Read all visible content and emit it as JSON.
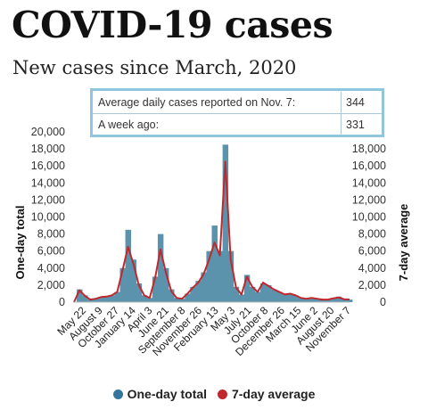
{
  "title": "COVID-19 cases",
  "subtitle": "New cases since March, 2020",
  "stats": {
    "row1_label": "Average daily cases reported on Nov. 7:",
    "row1_value": "344",
    "row2_label": "A week ago:",
    "row2_value": "331"
  },
  "colors": {
    "bars": "#5b93ad",
    "line": "#c0282d",
    "box_border": "#90c6dd"
  },
  "chart_data": {
    "type": "bar",
    "title": "",
    "ylabel": "One-day total",
    "y2label": "7-day average",
    "ylim": [
      0,
      20000
    ],
    "y_ticks_left": [
      "20,000",
      "18,000",
      "16,000",
      "14,000",
      "12,000",
      "10,000",
      "8,000",
      "6,000",
      "4,000",
      "2,000",
      "0"
    ],
    "y_ticks_right": [
      "18,000",
      "16,000",
      "14,000",
      "12,000",
      "10,000",
      "8,000",
      "6,000",
      "4,000",
      "2,000",
      "0"
    ],
    "x_ticks": [
      "May 22",
      "August 9",
      "October 27",
      "January 14",
      "April 3",
      "June 21",
      "September 8",
      "November 26",
      "February 13",
      "May 3",
      "July 21",
      "October 8",
      "December 26",
      "March 15",
      "June 2",
      "August 20",
      "November 7"
    ],
    "grid": false,
    "legend": "bottom",
    "series": [
      {
        "name": "One-day total",
        "kind": "bar",
        "values": [
          0,
          1500,
          800,
          300,
          400,
          600,
          650,
          800,
          1200,
          4000,
          8500,
          5000,
          2200,
          800,
          500,
          3000,
          8000,
          4000,
          1500,
          500,
          400,
          1000,
          1800,
          2500,
          3500,
          6000,
          9000,
          6000,
          18500,
          6000,
          1800,
          900,
          3200,
          1800,
          1200,
          2200,
          2000,
          1500,
          1200,
          900,
          1000,
          800,
          500,
          400,
          500,
          400,
          300,
          300,
          450,
          650,
          350,
          300
        ]
      },
      {
        "name": "7-day average",
        "kind": "line",
        "values": [
          0,
          1400,
          750,
          300,
          400,
          600,
          650,
          800,
          1200,
          3800,
          6500,
          4500,
          2000,
          800,
          500,
          2800,
          6200,
          3500,
          1300,
          500,
          400,
          1000,
          1700,
          2300,
          3300,
          5000,
          7000,
          5500,
          16500,
          5000,
          1700,
          900,
          3000,
          1800,
          1200,
          2300,
          1900,
          1500,
          1200,
          900,
          1000,
          800,
          500,
          400,
          500,
          400,
          300,
          300,
          450,
          550,
          340,
          320
        ]
      }
    ]
  },
  "legend_items": [
    {
      "label": "One-day total",
      "color": "#34769b"
    },
    {
      "label": "7-day average",
      "color": "#c0282d"
    }
  ]
}
